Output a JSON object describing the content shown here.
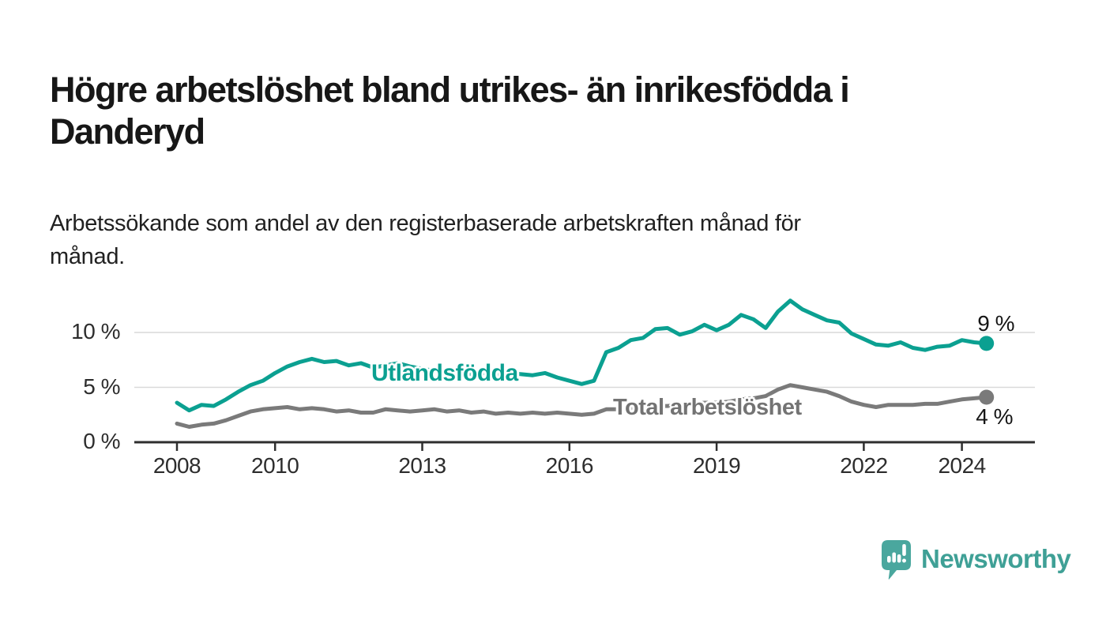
{
  "header": {
    "title": "Högre arbetslöshet bland utrikes- än inrikesfödda i\nDanderyd",
    "subtitle": "Arbetssökande som andel av den registerbaserade arbetskraften månad för\nmånad."
  },
  "chart_data": {
    "type": "line",
    "title": "Högre arbetslöshet bland utrikes- än inrikesfödda i Danderyd",
    "subtitle": "Arbetssökande som andel av den registerbaserade arbetskraften månad för månad.",
    "xlabel": "",
    "ylabel": "",
    "x_unit": "year (monthly data, sampled quarterly)",
    "x_start": 2008.0,
    "x_step": 0.25,
    "x_end": 2024.5,
    "xlim": [
      2007.15,
      2025.5
    ],
    "ylim": [
      0,
      13.5
    ],
    "grid": "horizontal-light",
    "legend_position": "inline-labels",
    "x_ticks": [
      {
        "year": 2008,
        "label": "2008"
      },
      {
        "year": 2010,
        "label": "2010"
      },
      {
        "year": 2013,
        "label": "2013"
      },
      {
        "year": 2016,
        "label": "2016"
      },
      {
        "year": 2019,
        "label": "2019"
      },
      {
        "year": 2022,
        "label": "2022"
      },
      {
        "year": 2024,
        "label": "2024"
      }
    ],
    "y_ticks": [
      {
        "value": 0,
        "label": "0 %"
      },
      {
        "value": 5,
        "label": "5 %"
      },
      {
        "value": 10,
        "label": "10 %"
      }
    ],
    "series": [
      {
        "name": "Utlandsfödda",
        "color": "#0ba091",
        "end_label": "9 %",
        "end_value": 9,
        "values": [
          3.6,
          2.9,
          3.4,
          3.3,
          3.9,
          4.6,
          5.2,
          5.6,
          6.3,
          6.9,
          7.3,
          7.6,
          7.3,
          7.4,
          7.0,
          7.2,
          6.8,
          7.0,
          7.2,
          6.9,
          6.7,
          6.5,
          6.6,
          6.4,
          6.2,
          6.3,
          6.1,
          6.3,
          6.2,
          6.1,
          6.3,
          5.9,
          5.6,
          5.3,
          5.6,
          8.2,
          8.6,
          9.3,
          9.5,
          10.3,
          10.4,
          9.8,
          10.1,
          10.7,
          10.2,
          10.7,
          11.6,
          11.2,
          10.4,
          11.9,
          12.9,
          12.1,
          11.6,
          11.1,
          10.9,
          9.9,
          9.4,
          8.9,
          8.8,
          9.1,
          8.6,
          8.4,
          8.7,
          8.8,
          9.3,
          9.1,
          9.0
        ]
      },
      {
        "name": "Total arbetslöshet",
        "color": "#7a7a7a",
        "end_label": "4 %",
        "end_value": 4,
        "values": [
          1.7,
          1.4,
          1.6,
          1.7,
          2.0,
          2.4,
          2.8,
          3.0,
          3.1,
          3.2,
          3.0,
          3.1,
          3.0,
          2.8,
          2.9,
          2.7,
          2.7,
          3.0,
          2.9,
          2.8,
          2.9,
          3.0,
          2.8,
          2.9,
          2.7,
          2.8,
          2.6,
          2.7,
          2.6,
          2.7,
          2.6,
          2.7,
          2.6,
          2.5,
          2.6,
          3.0,
          3.0,
          3.1,
          3.2,
          3.3,
          3.3,
          3.4,
          3.5,
          3.6,
          3.6,
          3.7,
          3.9,
          4.0,
          4.2,
          4.8,
          5.2,
          5.0,
          4.8,
          4.6,
          4.2,
          3.7,
          3.4,
          3.2,
          3.4,
          3.4,
          3.4,
          3.5,
          3.5,
          3.7,
          3.9,
          4.0,
          4.1
        ]
      }
    ]
  },
  "footer": {
    "brand": "Newsworthy"
  },
  "colors": {
    "accent_teal": "#0ba091",
    "line_gray": "#7a7a7a",
    "grid": "#d9d9d9",
    "axis": "#2e2e2e",
    "logo_teal": "#4aa79e",
    "logo_text_teal": "#3fa096"
  }
}
